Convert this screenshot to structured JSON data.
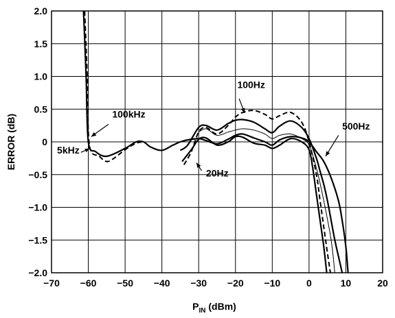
{
  "chart_data": {
    "type": "line",
    "xlabel": "P",
    "xlabel_sub": "IN",
    "xlabel_unit": " (dBm)",
    "ylabel": "ERROR (dB)",
    "xlim": [
      -70,
      20
    ],
    "ylim": [
      -2.0,
      2.0
    ],
    "grid": true,
    "x_ticks": [
      -70,
      -60,
      -50,
      -40,
      -30,
      -20,
      -10,
      0,
      10,
      20
    ],
    "x_tick_labels": [
      "−70",
      "−60",
      "−50",
      "−40",
      "−30",
      "−20",
      "−10",
      "0",
      "10",
      "20"
    ],
    "y_ticks": [
      -2.0,
      -1.5,
      -1.0,
      -0.5,
      0,
      0.5,
      1.0,
      1.5,
      2.0
    ],
    "y_tick_labels": [
      "−2.0",
      "−1.5",
      "−1.0",
      "−0.5",
      "0",
      "0.5",
      "1.0",
      "1.5",
      "2.0"
    ],
    "annotations": [
      {
        "text": "100kHz",
        "x": -53.5,
        "y": 0.37
      },
      {
        "text": "5kHz",
        "x": -68.5,
        "y": -0.18
      },
      {
        "text": "100Hz",
        "x": -19.5,
        "y": 0.82
      },
      {
        "text": "500Hz",
        "x": 9.0,
        "y": 0.19
      },
      {
        "text": "20Hz",
        "x": -28.0,
        "y": -0.53
      }
    ],
    "series": [
      {
        "style": "solid",
        "weight": 2.2,
        "x": [
          -61.3,
          -60.6,
          -60.0,
          -58.0,
          -55.0,
          -50.0,
          -47.0,
          -45.0,
          -43.0,
          -40.0,
          -37.0,
          -35.0,
          -33.0,
          -30.0,
          -28.0,
          -25.0,
          -22.0,
          -20.0,
          -18.0,
          -15.0,
          -12.0,
          -10.0,
          -8.0,
          -5.0,
          -2.0,
          0.0,
          2.0,
          4.0,
          6.0,
          8.0,
          9.0,
          10.0,
          10.6
        ],
        "y": [
          2.0,
          1.0,
          0.0,
          -0.15,
          -0.22,
          -0.1,
          0.0,
          0.0,
          -0.08,
          -0.13,
          -0.05,
          0.0,
          0.03,
          0.05,
          0.02,
          -0.03,
          0.04,
          0.1,
          0.12,
          0.06,
          0.0,
          -0.05,
          0.03,
          0.08,
          0.06,
          0.0,
          -0.15,
          -0.3,
          -0.55,
          -0.9,
          -1.2,
          -1.6,
          -2.0
        ]
      },
      {
        "style": "dashed",
        "weight": 2.0,
        "x": [
          -61.0,
          -60.3,
          -59.7,
          -57.0,
          -55.0,
          -53.0,
          -50.0,
          -47.0,
          -45.0
        ],
        "y": [
          2.0,
          1.0,
          -0.05,
          -0.22,
          -0.3,
          -0.25,
          -0.12,
          -0.02,
          0.0
        ]
      },
      {
        "style": "solid",
        "weight": 2.2,
        "x": [
          -35.0,
          -33.0,
          -30.0,
          -28.0,
          -25.0,
          -22.0,
          -20.0,
          -18.0,
          -15.0,
          -12.0,
          -10.0,
          -8.0,
          -5.0,
          -2.0,
          0.0,
          2.0,
          3.0,
          4.0,
          5.0,
          6.0,
          7.0,
          8.0,
          9.0
        ],
        "y": [
          -0.13,
          -0.05,
          0.22,
          0.25,
          0.18,
          0.28,
          0.33,
          0.34,
          0.3,
          0.2,
          0.14,
          0.24,
          0.32,
          0.22,
          0.05,
          -0.25,
          -0.45,
          -0.65,
          -0.9,
          -1.2,
          -1.5,
          -1.75,
          -2.0
        ]
      },
      {
        "style": "dashed",
        "weight": 2.0,
        "x": [
          -34.0,
          -32.0,
          -30.0,
          -28.0,
          -25.0,
          -22.0,
          -20.0,
          -18.0,
          -15.0,
          -12.0,
          -10.0,
          -8.0,
          -5.0,
          -2.0,
          0.0,
          2.0,
          3.0,
          4.0,
          5.0,
          5.8
        ],
        "y": [
          -0.35,
          -0.15,
          0.15,
          0.22,
          0.12,
          0.25,
          0.38,
          0.45,
          0.48,
          0.42,
          0.35,
          0.4,
          0.45,
          0.3,
          0.0,
          -0.5,
          -0.9,
          -1.3,
          -1.7,
          -2.0
        ]
      },
      {
        "style": "solid",
        "weight": 2.2,
        "x": [
          -34.5,
          -32.0,
          -30.0,
          -28.0,
          -25.0,
          -22.0,
          -20.0,
          -18.0,
          -15.0,
          -12.0,
          -10.0,
          -8.0,
          -5.0,
          -2.0,
          0.0,
          1.0,
          2.0,
          3.0,
          4.0,
          4.8
        ],
        "y": [
          -0.3,
          -0.12,
          0.04,
          0.06,
          -0.05,
          0.0,
          0.08,
          0.07,
          -0.02,
          -0.05,
          -0.1,
          -0.05,
          0.05,
          0.0,
          -0.12,
          -0.4,
          -0.8,
          -1.2,
          -1.6,
          -2.0
        ]
      },
      {
        "style": "solid",
        "weight": 1.0,
        "x": [
          -30.0,
          -28.0,
          -25.0,
          -22.0,
          -20.0,
          -18.0,
          -15.0,
          -12.0,
          -10.0,
          -8.0,
          -5.0,
          -2.0,
          0.0,
          2.0,
          4.0,
          6.0,
          7.0
        ],
        "y": [
          0.15,
          0.2,
          0.1,
          0.15,
          0.18,
          0.2,
          0.18,
          0.12,
          0.05,
          0.1,
          0.12,
          0.05,
          -0.05,
          -0.4,
          -0.9,
          -1.5,
          -2.0
        ]
      }
    ]
  }
}
